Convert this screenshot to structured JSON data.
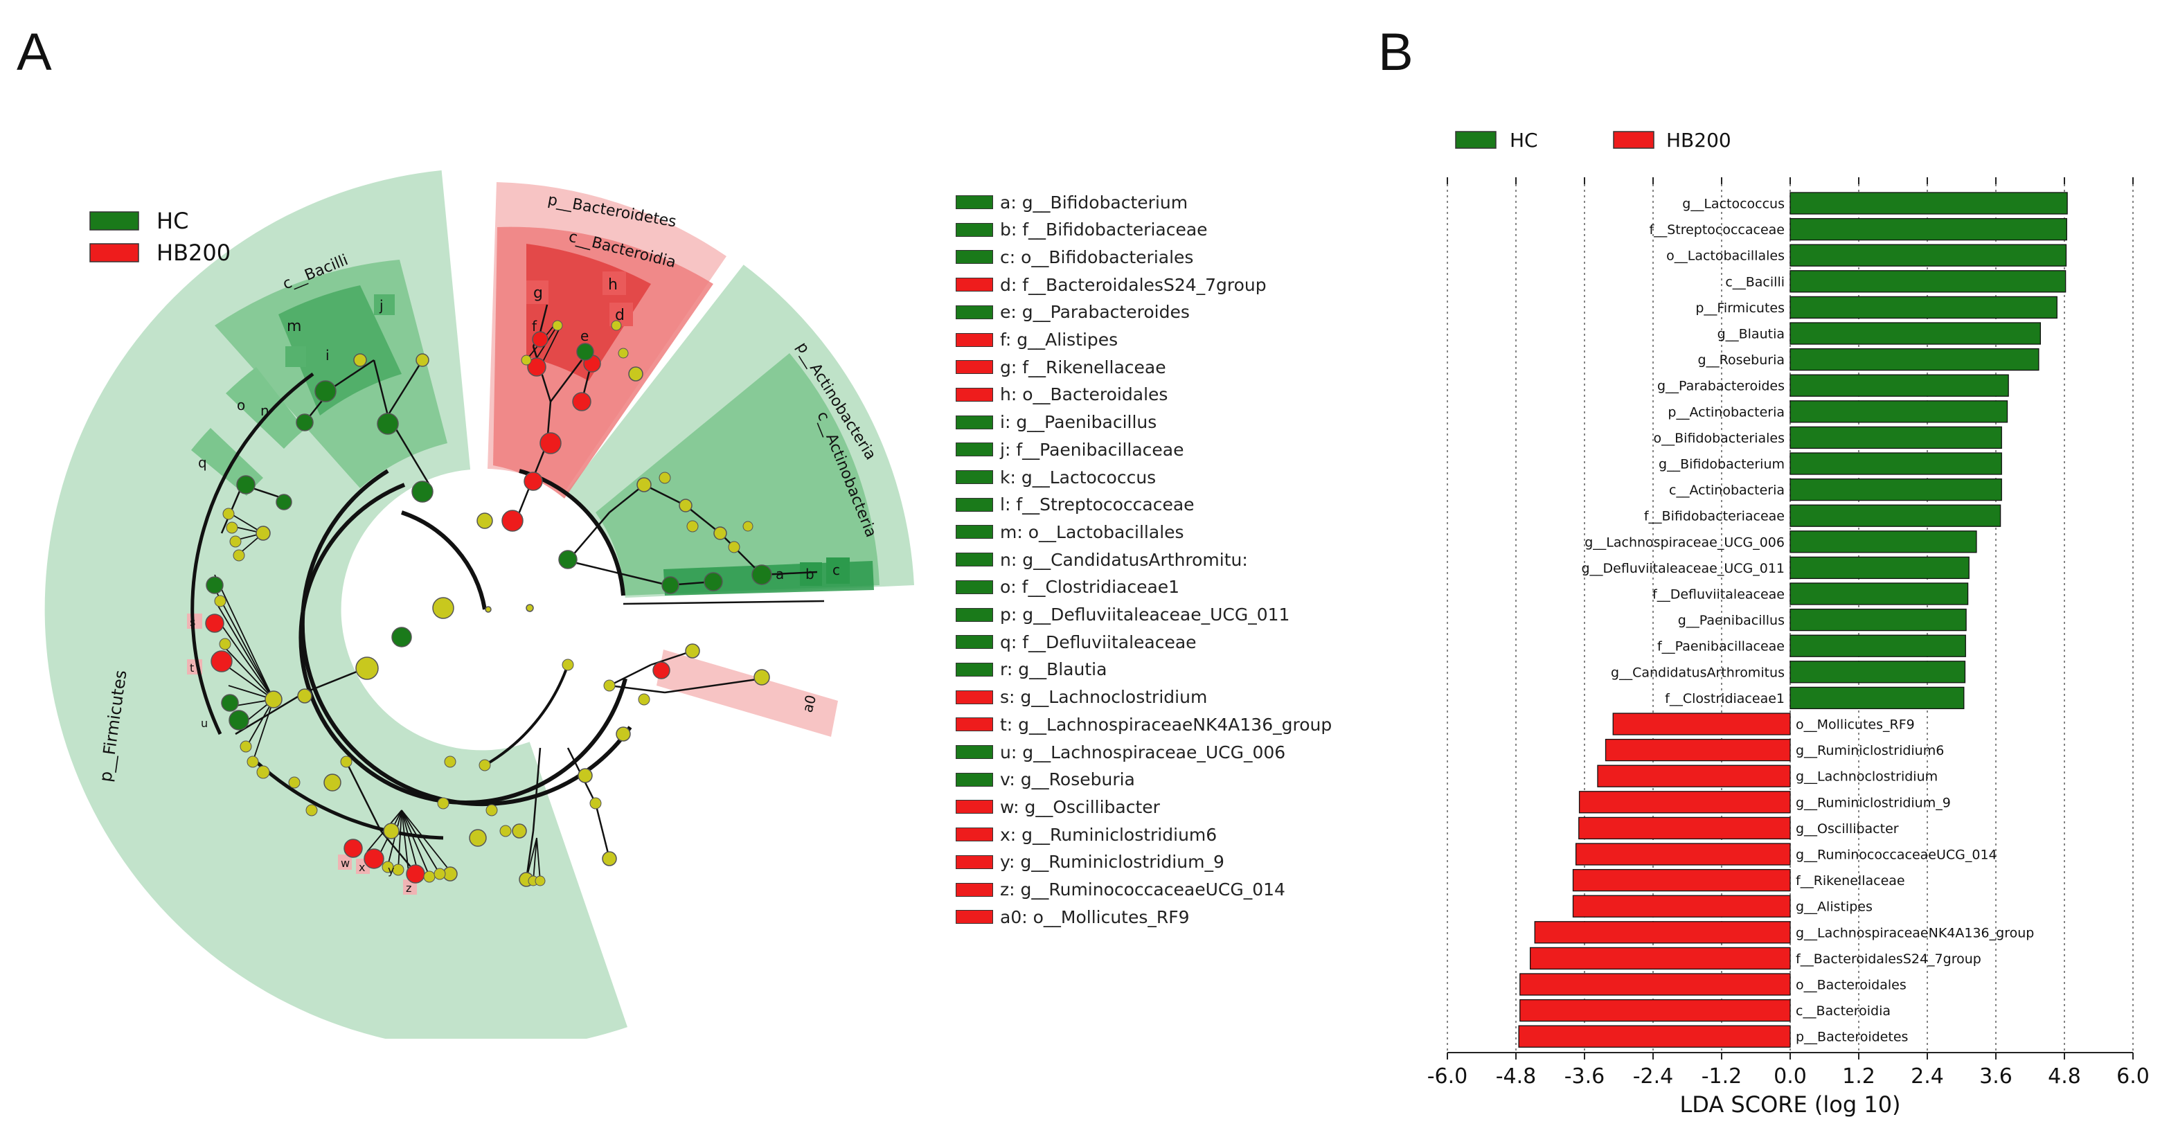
{
  "panel_a_label": "A",
  "panel_b_label": "B",
  "colors": {
    "hc": "#1a7a1a",
    "hb200": "#ee1c1c",
    "node": "#c8c81e",
    "hc_shade": "#bfe2c8",
    "hb_shade": "#f7c4c4"
  },
  "cladogram_legend": [
    {
      "label": "HC",
      "group": "HC"
    },
    {
      "label": "HB200",
      "group": "HB200"
    }
  ],
  "clade_labels": {
    "p_firmicutes": "p__Firmicutes",
    "c_bacilli": "c__Bacilli",
    "p_bacteroidetes": "p__Bacteroidetes",
    "c_bacteroidia": "c__Bacteroidia",
    "p_actinobacteria": "p__Actinobacteria",
    "c_actinobacteria": "c__Actinobacteria",
    "a0": "a0",
    "m": "m",
    "i": "i",
    "j": "j",
    "o": "o",
    "n": "n",
    "q": "q",
    "g": "g",
    "h": "h",
    "f": "f",
    "e": "e",
    "d": "d",
    "a": "a",
    "b": "b",
    "c": "c",
    "s": "s",
    "t": "t",
    "u": "u",
    "w": "w",
    "x": "x",
    "y": "y",
    "z": "z"
  },
  "cladogram_key": [
    {
      "text": "a: g__Bifidobacterium",
      "group": "HC"
    },
    {
      "text": "b: f__Bifidobacteriaceae",
      "group": "HC"
    },
    {
      "text": "c: o__Bifidobacteriales",
      "group": "HC"
    },
    {
      "text": "d: f__BacteroidalesS24_7group",
      "group": "HB200"
    },
    {
      "text": "e: g__Parabacteroides",
      "group": "HC"
    },
    {
      "text": "f: g__Alistipes",
      "group": "HB200"
    },
    {
      "text": "g: f__Rikenellaceae",
      "group": "HB200"
    },
    {
      "text": "h: o__Bacteroidales",
      "group": "HB200"
    },
    {
      "text": "i: g__Paenibacillus",
      "group": "HC"
    },
    {
      "text": "j: f__Paenibacillaceae",
      "group": "HC"
    },
    {
      "text": "k: g__Lactococcus",
      "group": "HC"
    },
    {
      "text": "l: f__Streptococcaceae",
      "group": "HC"
    },
    {
      "text": "m: o__Lactobacillales",
      "group": "HC"
    },
    {
      "text": "n: g__CandidatusArthromitu:",
      "group": "HC"
    },
    {
      "text": "o: f__Clostridiaceae1",
      "group": "HC"
    },
    {
      "text": "p: g__Defluviitaleaceae_UCG_011",
      "group": "HC"
    },
    {
      "text": "q: f__Defluviitaleaceae",
      "group": "HC"
    },
    {
      "text": "r: g__Blautia",
      "group": "HC"
    },
    {
      "text": "s: g__Lachnoclostridium",
      "group": "HB200"
    },
    {
      "text": "t: g__LachnospiraceaeNK4A136_group",
      "group": "HB200"
    },
    {
      "text": "u: g__Lachnospiraceae_UCG_006",
      "group": "HC"
    },
    {
      "text": "v: g__Roseburia",
      "group": "HC"
    },
    {
      "text": "w: g__Oscillibacter",
      "group": "HB200"
    },
    {
      "text": "x: g__Ruminiclostridium6",
      "group": "HB200"
    },
    {
      "text": "y: g__Ruminiclostridium_9",
      "group": "HB200"
    },
    {
      "text": "z: g__RuminococcaceaeUCG_014",
      "group": "HB200"
    },
    {
      "text": "a0: o__Mollicutes_RF9",
      "group": "HB200"
    }
  ],
  "chart_data": {
    "type": "bar",
    "orientation": "horizontal",
    "xlabel": "LDA SCORE (log 10)",
    "xlim": [
      -6.0,
      6.0
    ],
    "xticks": [
      "-6.0",
      "-4.8",
      "-3.6",
      "-2.4",
      "-1.2",
      "0.0",
      "1.2",
      "2.4",
      "3.6",
      "4.8",
      "6.0"
    ],
    "grid": "vertical dotted",
    "legend": [
      {
        "label": "HC",
        "group": "HC"
      },
      {
        "label": "HB200",
        "group": "HB200"
      }
    ],
    "legend_position": "top",
    "bars": [
      {
        "label": "g__Lactococcus",
        "value": 4.85,
        "group": "HC"
      },
      {
        "label": "f__Streptococcaceae",
        "value": 4.84,
        "group": "HC"
      },
      {
        "label": "o__Lactobacillales",
        "value": 4.83,
        "group": "HC"
      },
      {
        "label": "c__Bacilli",
        "value": 4.82,
        "group": "HC"
      },
      {
        "label": "p__Firmicutes",
        "value": 4.67,
        "group": "HC"
      },
      {
        "label": "g__Blautia",
        "value": 4.38,
        "group": "HC"
      },
      {
        "label": "g__Roseburia",
        "value": 4.35,
        "group": "HC"
      },
      {
        "label": "g__Parabacteroides",
        "value": 3.82,
        "group": "HC"
      },
      {
        "label": "p__Actinobacteria",
        "value": 3.8,
        "group": "HC"
      },
      {
        "label": "o__Bifidobacteriales",
        "value": 3.7,
        "group": "HC"
      },
      {
        "label": "g__Bifidobacterium",
        "value": 3.7,
        "group": "HC"
      },
      {
        "label": "c__Actinobacteria",
        "value": 3.7,
        "group": "HC"
      },
      {
        "label": "f__Bifidobacteriaceae",
        "value": 3.68,
        "group": "HC"
      },
      {
        "label": "g__Lachnospiraceae_UCG_006",
        "value": 3.26,
        "group": "HC"
      },
      {
        "label": "g__Defluviitaleaceae_UCG_011",
        "value": 3.13,
        "group": "HC"
      },
      {
        "label": "f__Defluviitaleaceae",
        "value": 3.11,
        "group": "HC"
      },
      {
        "label": "g__Paenibacillus",
        "value": 3.08,
        "group": "HC"
      },
      {
        "label": "f__Paenibacillaceae",
        "value": 3.07,
        "group": "HC"
      },
      {
        "label": "g__CandidatusArthromitus",
        "value": 3.06,
        "group": "HC"
      },
      {
        "label": "f__Clostridiaceae1",
        "value": 3.04,
        "group": "HC"
      },
      {
        "label": "o__Mollicutes_RF9",
        "value": -3.1,
        "group": "HB200"
      },
      {
        "label": "g__Ruminiclostridium6",
        "value": -3.23,
        "group": "HB200"
      },
      {
        "label": "g__Lachnoclostridium",
        "value": -3.37,
        "group": "HB200"
      },
      {
        "label": "g__Ruminiclostridium_9",
        "value": -3.69,
        "group": "HB200"
      },
      {
        "label": "g__Oscillibacter",
        "value": -3.7,
        "group": "HB200"
      },
      {
        "label": "g__RuminococcaceaeUCG_014",
        "value": -3.75,
        "group": "HB200"
      },
      {
        "label": "f__Rikenellaceae",
        "value": -3.8,
        "group": "HB200"
      },
      {
        "label": "g__Alistipes",
        "value": -3.8,
        "group": "HB200"
      },
      {
        "label": "g__LachnospiraceaeNK4A136_group",
        "value": -4.47,
        "group": "HB200"
      },
      {
        "label": "f__BacteroidalesS24_7group",
        "value": -4.55,
        "group": "HB200"
      },
      {
        "label": "o__Bacteroidales",
        "value": -4.73,
        "group": "HB200"
      },
      {
        "label": "c__Bacteroidia",
        "value": -4.73,
        "group": "HB200"
      },
      {
        "label": "p__Bacteroidetes",
        "value": -4.75,
        "group": "HB200"
      }
    ]
  }
}
